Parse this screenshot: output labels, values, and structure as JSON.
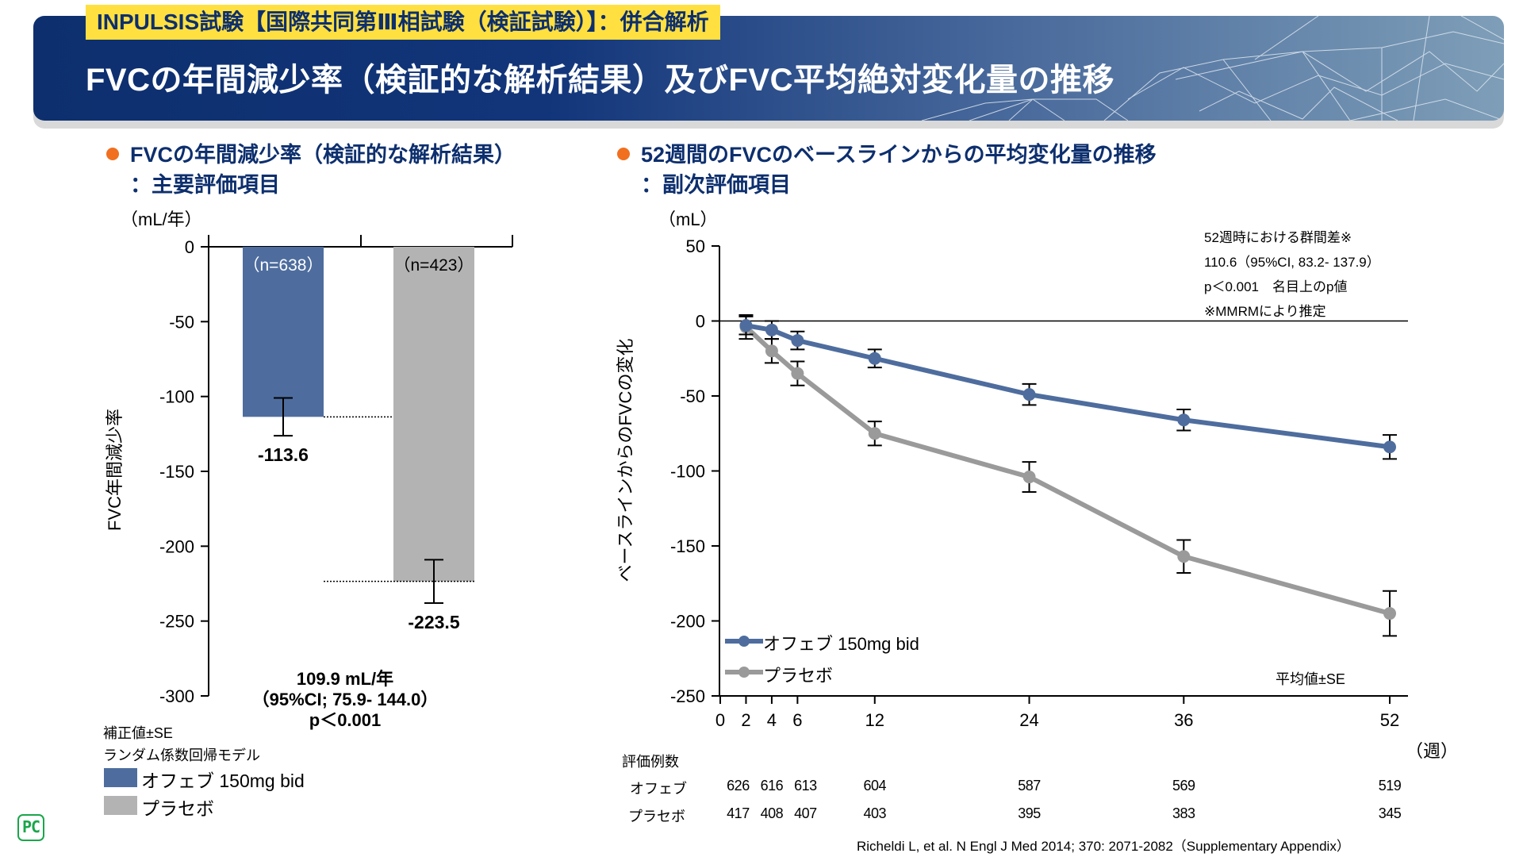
{
  "header": {
    "subtitle": "INPULSIS試験【国際共同第Ⅲ相試験（検証試験）】：併合解析",
    "title": "FVCの年間減少率（検証的な解析結果）及びFVC平均絶対変化量の推移"
  },
  "colors": {
    "ofev": "#4e6d9e",
    "placebo": "#b3b3b3",
    "placebo_line": "#9a9a9a",
    "accent_orange": "#f07020",
    "navy": "#0d2f6e",
    "subtitle_yellow": "#ffe040"
  },
  "left_section": {
    "title_line1": "FVCの年間減少率（検証的な解析結果）",
    "title_line2": "：主要評価項目",
    "diff_value": "109.9 mL/年",
    "diff_ci": "（95%CI; 75.9- 144.0）",
    "diff_p": "p＜0.001",
    "note1": "補正値±SE",
    "note2": "ランダム係数回帰モデル",
    "legend": [
      {
        "label": "オフェブ 150mg bid",
        "icon": "blue-square"
      },
      {
        "label": "プラセボ",
        "icon": "gray-square"
      }
    ]
  },
  "right_section": {
    "title_line1": "52週間のFVCのベースラインからの平均変化量の推移",
    "title_line2": "：副次評価項目",
    "annotation": [
      "52週時における群間差※",
      "110.6（95%CI, 83.2- 137.9）",
      "p＜0.001　名目上のp値",
      "※MMRMにより推定"
    ],
    "mean_se_note": "平均値±SE",
    "legend": [
      {
        "label": "オフェブ 150mg bid",
        "icon": "blue-line-marker"
      },
      {
        "label": "プラセボ",
        "icon": "gray-line-marker"
      }
    ],
    "n_table": {
      "title": "評価例数",
      "rows": [
        {
          "label": "オフェブ",
          "values": [
            "626",
            "616",
            "613",
            "604",
            "587",
            "569",
            "519"
          ]
        },
        {
          "label": "プラセボ",
          "values": [
            "417",
            "408",
            "407",
            "403",
            "395",
            "383",
            "345"
          ]
        }
      ]
    }
  },
  "citation": "Richeldi L, et al. N Engl J Med 2014; 370: 2071-2082（Supplementary Appendix）",
  "logo_text": "PC",
  "chart_data": [
    {
      "type": "bar",
      "title": "FVCの年間減少率",
      "ylabel": "FVC年間減少率",
      "yunit": "（mL/年）",
      "ylim": [
        -300,
        0
      ],
      "yticks": [
        0,
        -50,
        -100,
        -150,
        -200,
        -250,
        -300
      ],
      "categories": [
        "オフェブ 150mg bid",
        "プラセボ"
      ],
      "n_labels": [
        "（n=638）",
        "（n=423）"
      ],
      "values": [
        -113.6,
        -223.5
      ],
      "value_labels": [
        "-113.6",
        "-223.5"
      ],
      "se": [
        12.6,
        14.5
      ],
      "grid": false
    },
    {
      "type": "line",
      "title": "52週間のFVCのベースラインからの平均変化量の推移",
      "ylabel": "ベースラインからのFVCの変化",
      "yunit": "（mL）",
      "xlabel": "（週）",
      "ylim": [
        -250,
        50
      ],
      "yticks": [
        50,
        0,
        -50,
        -100,
        -150,
        -200,
        -250
      ],
      "xticks": [
        0,
        2,
        4,
        6,
        12,
        24,
        36,
        52
      ],
      "x": [
        2,
        4,
        6,
        12,
        24,
        36,
        52
      ],
      "series": [
        {
          "name": "オフェブ 150mg bid",
          "values": [
            -3,
            -6,
            -13,
            -25,
            -49,
            -66,
            -84
          ],
          "se": [
            6,
            6,
            6,
            6,
            7,
            7,
            8
          ]
        },
        {
          "name": "プラセボ",
          "values": [
            -4,
            -20,
            -35,
            -75,
            -104,
            -157,
            -195
          ],
          "se": [
            8,
            8,
            8,
            8,
            10,
            11,
            15
          ]
        }
      ],
      "legend_position": "bottom-left",
      "grid": false
    }
  ]
}
